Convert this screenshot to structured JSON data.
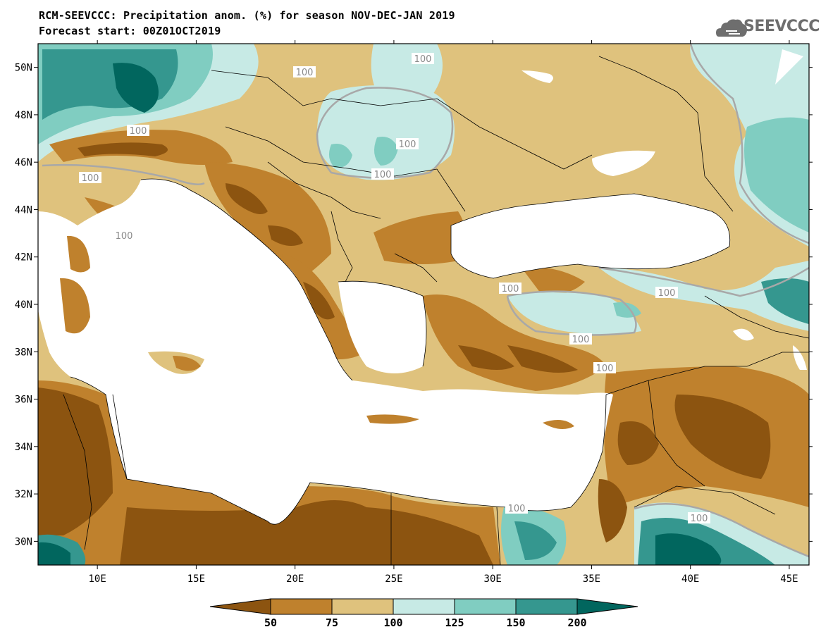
{
  "header": {
    "title_line1": "RCM-SEEVCCC: Precipitation anom. (%) for season NOV-DEC-JAN 2019",
    "title_line2": "Forecast start: 00Z01OCT2019",
    "logo_text": "SEEVCCC",
    "logo_icon": "cloud-icon"
  },
  "chart_data": {
    "type": "heatmap",
    "title": "RCM-SEEVCCC: Precipitation anom. (%) for season NOV-DEC-JAN 2019",
    "subtitle": "Forecast start: 00Z01OCT2019",
    "x_ticks": [
      "10E",
      "15E",
      "20E",
      "25E",
      "30E",
      "35E",
      "40E",
      "45E"
    ],
    "x_tick_values": [
      10,
      15,
      20,
      25,
      30,
      35,
      40,
      45
    ],
    "y_ticks": [
      "50N",
      "48N",
      "46N",
      "44N",
      "42N",
      "40N",
      "38N",
      "36N",
      "34N",
      "32N",
      "30N"
    ],
    "y_tick_values": [
      50,
      48,
      46,
      44,
      42,
      40,
      38,
      36,
      34,
      32,
      30
    ],
    "xlim": [
      7,
      46
    ],
    "ylim": [
      29,
      51
    ],
    "contour_label": "100",
    "colorbar": {
      "levels": [
        "50",
        "75",
        "100",
        "125",
        "150",
        "200"
      ],
      "colors": [
        "#8c5410",
        "#bf812d",
        "#dfc27d",
        "#c7eae5",
        "#80cdc1",
        "#35978f",
        "#01665e"
      ]
    },
    "colors": {
      "below_50": "#8c5410",
      "50_75": "#bf812d",
      "75_100": "#dfc27d",
      "100_125": "#c7eae5",
      "125_150": "#80cdc1",
      "150_200": "#35978f",
      "above_200": "#01665e",
      "contour_100": "#a8a8a8"
    }
  }
}
